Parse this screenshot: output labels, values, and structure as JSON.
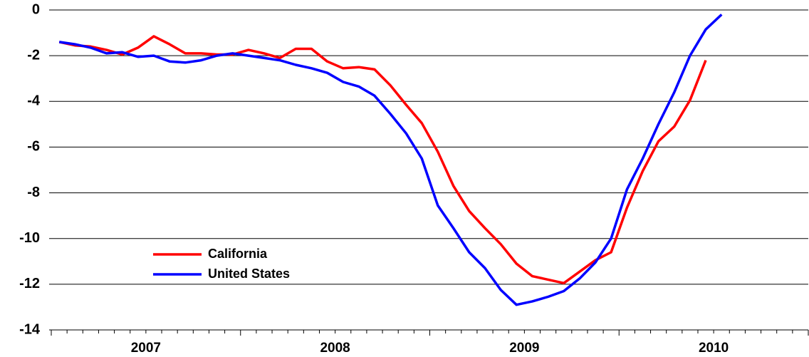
{
  "chart_data": {
    "type": "line",
    "x": [
      2007.042,
      2007.125,
      2007.208,
      2007.292,
      2007.375,
      2007.458,
      2007.542,
      2007.625,
      2007.708,
      2007.792,
      2007.875,
      2007.958,
      2008.042,
      2008.125,
      2008.208,
      2008.292,
      2008.375,
      2008.458,
      2008.542,
      2008.625,
      2008.708,
      2008.792,
      2008.875,
      2008.958,
      2009.042,
      2009.125,
      2009.208,
      2009.292,
      2009.375,
      2009.458,
      2009.542,
      2009.625,
      2009.708,
      2009.792,
      2009.875,
      2009.958,
      2010.042,
      2010.125,
      2010.208,
      2010.292,
      2010.375,
      2010.458,
      2010.542
    ],
    "series": [
      {
        "name": "California",
        "color": "#ff0000",
        "values": [
          -1.4,
          -1.55,
          -1.6,
          -1.75,
          -1.95,
          -1.65,
          -1.15,
          -1.5,
          -1.9,
          -1.9,
          -1.95,
          -1.95,
          -1.75,
          -1.9,
          -2.1,
          -1.7,
          -1.7,
          -2.25,
          -2.55,
          -2.5,
          -2.6,
          -3.3,
          -4.15,
          -4.95,
          -6.2,
          -7.7,
          -8.8,
          -9.55,
          -10.25,
          -11.1,
          -11.65,
          -11.8,
          -11.95,
          -11.45,
          -10.95,
          -10.6,
          -8.65,
          -7.05,
          -5.75,
          -5.1,
          -3.95,
          -2.2,
          null
        ]
      },
      {
        "name": "United States",
        "color": "#0000ff",
        "values": [
          -1.4,
          -1.5,
          -1.65,
          -1.9,
          -1.85,
          -2.05,
          -2.0,
          -2.25,
          -2.3,
          -2.2,
          -2.0,
          -1.9,
          -2.0,
          -2.1,
          -2.2,
          -2.4,
          -2.55,
          -2.75,
          -3.15,
          -3.35,
          -3.75,
          -4.55,
          -5.4,
          -6.5,
          -8.55,
          -9.55,
          -10.6,
          -11.3,
          -12.25,
          -12.9,
          -12.75,
          -12.55,
          -12.3,
          -11.75,
          -11.05,
          -10.0,
          -7.85,
          -6.5,
          -5.0,
          -3.6,
          -2.0,
          -0.85,
          -0.2
        ]
      }
    ],
    "xlim": [
      2007,
      2011
    ],
    "xticks": [
      {
        "value": 2007.5,
        "label": "2007"
      },
      {
        "value": 2008.5,
        "label": "2008"
      },
      {
        "value": 2009.5,
        "label": "2009"
      },
      {
        "value": 2010.5,
        "label": "2010"
      }
    ],
    "ylim": [
      -14,
      0
    ],
    "yticks": [
      -14,
      -12,
      -10,
      -8,
      -6,
      -4,
      -2,
      0
    ],
    "grid": true,
    "legend": "lower left"
  }
}
